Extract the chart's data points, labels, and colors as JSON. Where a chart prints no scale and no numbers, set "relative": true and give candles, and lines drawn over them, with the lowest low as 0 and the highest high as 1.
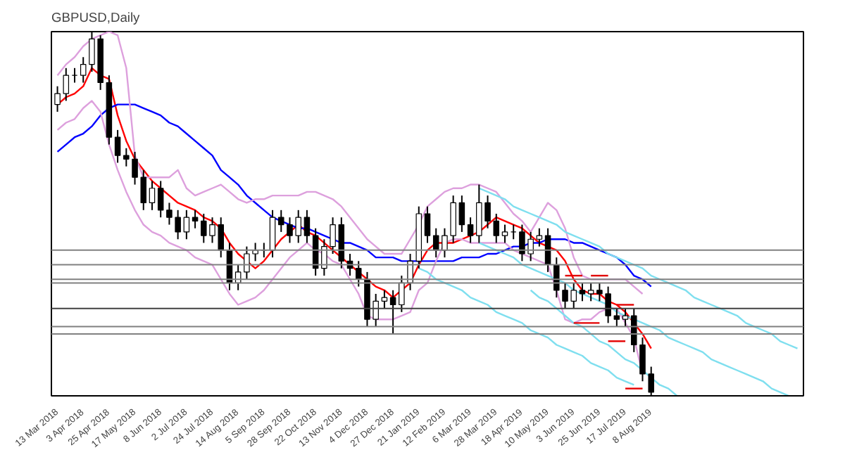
{
  "chart_data": {
    "type": "candlestick",
    "title": "GBPUSD,Daily",
    "relative": true,
    "grid": false,
    "categories": [
      "13 Mar 2018",
      null,
      null,
      "3 Apr 2018",
      null,
      null,
      "25 Apr 2018",
      null,
      null,
      "17 May 2018",
      null,
      null,
      "8 Jun 2018",
      null,
      null,
      "2 Jul 2018",
      null,
      null,
      "24 Jul 2018",
      null,
      null,
      "14 Aug 2018",
      null,
      null,
      "5 Sep 2018",
      null,
      null,
      "28 Sep 2018",
      null,
      null,
      "22 Oct 2018",
      null,
      null,
      "13 Nov 2018",
      null,
      null,
      "4 Dec 2018",
      null,
      null,
      "27 Dec 2018",
      null,
      null,
      "21 Jan 2019",
      null,
      null,
      "12 Feb 2019",
      null,
      null,
      "6 Mar 2019",
      null,
      null,
      "28 Mar 2019",
      null,
      null,
      "18 Apr 2019",
      null,
      null,
      "10 May 2019",
      null,
      null,
      "3 Jun 2019",
      null,
      null,
      "25 Jun 2019",
      null,
      null,
      "17 Jul 2019",
      null,
      null,
      "8 Aug 2019",
      null,
      null,
      null,
      null,
      null,
      null,
      null,
      null,
      null,
      null,
      null,
      null,
      null,
      null,
      null,
      null,
      null
    ],
    "ohlc": [
      [
        0.8,
        0.85,
        0.78,
        0.83
      ],
      [
        0.83,
        0.9,
        0.81,
        0.88
      ],
      [
        0.88,
        0.9,
        0.86,
        0.88
      ],
      [
        0.88,
        0.93,
        0.86,
        0.91
      ],
      [
        0.91,
        1.0,
        0.89,
        0.98
      ],
      [
        0.98,
        0.99,
        0.84,
        0.86
      ],
      [
        0.86,
        0.88,
        0.69,
        0.71
      ],
      [
        0.71,
        0.73,
        0.64,
        0.66
      ],
      [
        0.66,
        0.68,
        0.63,
        0.65
      ],
      [
        0.65,
        0.67,
        0.58,
        0.6
      ],
      [
        0.6,
        0.62,
        0.51,
        0.53
      ],
      [
        0.53,
        0.59,
        0.51,
        0.57
      ],
      [
        0.57,
        0.59,
        0.49,
        0.51
      ],
      [
        0.51,
        0.53,
        0.47,
        0.49
      ],
      [
        0.49,
        0.51,
        0.43,
        0.45
      ],
      [
        0.45,
        0.51,
        0.43,
        0.49
      ],
      [
        0.49,
        0.51,
        0.46,
        0.48
      ],
      [
        0.48,
        0.5,
        0.42,
        0.44
      ],
      [
        0.44,
        0.49,
        0.42,
        0.47
      ],
      [
        0.47,
        0.49,
        0.38,
        0.4
      ],
      [
        0.4,
        0.42,
        0.29,
        0.31
      ],
      [
        0.31,
        0.36,
        0.29,
        0.34
      ],
      [
        0.34,
        0.41,
        0.32,
        0.39
      ],
      [
        0.39,
        0.42,
        0.37,
        0.4
      ],
      [
        0.4,
        0.42,
        0.38,
        0.4
      ],
      [
        0.4,
        0.51,
        0.38,
        0.49
      ],
      [
        0.49,
        0.51,
        0.45,
        0.47
      ],
      [
        0.47,
        0.49,
        0.42,
        0.44
      ],
      [
        0.44,
        0.51,
        0.42,
        0.49
      ],
      [
        0.49,
        0.51,
        0.42,
        0.44
      ],
      [
        0.44,
        0.46,
        0.33,
        0.35
      ],
      [
        0.35,
        0.43,
        0.33,
        0.41
      ],
      [
        0.41,
        0.49,
        0.39,
        0.47
      ],
      [
        0.47,
        0.49,
        0.35,
        0.37
      ],
      [
        0.37,
        0.39,
        0.33,
        0.35
      ],
      [
        0.35,
        0.37,
        0.3,
        0.32
      ],
      [
        0.32,
        0.34,
        0.19,
        0.21
      ],
      [
        0.21,
        0.28,
        0.19,
        0.26
      ],
      [
        0.26,
        0.29,
        0.24,
        0.27
      ],
      [
        0.27,
        0.29,
        0.17,
        0.25
      ],
      [
        0.25,
        0.33,
        0.23,
        0.31
      ],
      [
        0.31,
        0.39,
        0.29,
        0.37
      ],
      [
        0.37,
        0.52,
        0.35,
        0.5
      ],
      [
        0.5,
        0.52,
        0.42,
        0.44
      ],
      [
        0.44,
        0.46,
        0.38,
        0.4
      ],
      [
        0.4,
        0.46,
        0.38,
        0.44
      ],
      [
        0.44,
        0.55,
        0.42,
        0.53
      ],
      [
        0.53,
        0.55,
        0.45,
        0.47
      ],
      [
        0.47,
        0.49,
        0.42,
        0.44
      ],
      [
        0.44,
        0.58,
        0.42,
        0.53
      ],
      [
        0.53,
        0.55,
        0.46,
        0.48
      ],
      [
        0.48,
        0.5,
        0.42,
        0.44
      ],
      [
        0.44,
        0.47,
        0.42,
        0.45
      ],
      [
        0.45,
        0.47,
        0.43,
        0.45
      ],
      [
        0.45,
        0.47,
        0.37,
        0.39
      ],
      [
        0.39,
        0.45,
        0.37,
        0.43
      ],
      [
        0.43,
        0.46,
        0.41,
        0.44
      ],
      [
        0.44,
        0.46,
        0.34,
        0.36
      ],
      [
        0.36,
        0.38,
        0.27,
        0.29
      ],
      [
        0.29,
        0.31,
        0.24,
        0.26
      ],
      [
        0.26,
        0.31,
        0.24,
        0.29
      ],
      [
        0.29,
        0.31,
        0.26,
        0.28
      ],
      [
        0.28,
        0.31,
        0.26,
        0.29
      ],
      [
        0.29,
        0.31,
        0.26,
        0.28
      ],
      [
        0.28,
        0.3,
        0.2,
        0.22
      ],
      [
        0.22,
        0.24,
        0.19,
        0.21
      ],
      [
        0.21,
        0.24,
        0.19,
        0.22
      ],
      [
        0.22,
        0.24,
        0.12,
        0.14
      ],
      [
        0.14,
        0.16,
        0.04,
        0.06
      ],
      [
        0.06,
        0.08,
        0.0,
        0.01
      ],
      null,
      null,
      null,
      null,
      null,
      null,
      null,
      null,
      null,
      null,
      null,
      null,
      null,
      null,
      null,
      null,
      null
    ],
    "series": [
      {
        "type": "line",
        "color": "#ff0000",
        "values": [
          0.8,
          0.82,
          0.83,
          0.85,
          0.9,
          0.88,
          0.87,
          0.77,
          0.7,
          0.65,
          0.62,
          0.59,
          0.57,
          0.55,
          0.53,
          0.52,
          0.51,
          0.49,
          0.48,
          0.46,
          0.42,
          0.39,
          0.37,
          0.35,
          0.37,
          0.4,
          0.43,
          0.45,
          0.47,
          0.45,
          0.44,
          0.42,
          0.4,
          0.38,
          0.36,
          0.34,
          0.32,
          0.3,
          0.29,
          0.27,
          0.29,
          0.31,
          0.36,
          0.4,
          0.42,
          0.42,
          0.42,
          0.43,
          0.44,
          0.45,
          0.47,
          0.49,
          0.48,
          0.47,
          0.46,
          0.44,
          0.42,
          0.41,
          0.4,
          0.37,
          0.32,
          0.29,
          0.28,
          0.28,
          0.26,
          0.25,
          0.23,
          0.2,
          0.17,
          0.13,
          null,
          null,
          null,
          null,
          null,
          null,
          null,
          null,
          null,
          null,
          null,
          null,
          null,
          null,
          null,
          null,
          null
        ]
      },
      {
        "type": "line",
        "color": "#0000ff",
        "values": [
          0.67,
          0.69,
          0.71,
          0.72,
          0.74,
          0.77,
          0.79,
          0.8,
          0.8,
          0.8,
          0.79,
          0.78,
          0.77,
          0.75,
          0.74,
          0.72,
          0.7,
          0.68,
          0.66,
          0.62,
          0.6,
          0.58,
          0.55,
          0.53,
          0.51,
          0.49,
          0.48,
          0.47,
          0.46,
          0.46,
          0.45,
          0.44,
          0.43,
          0.42,
          0.42,
          0.41,
          0.4,
          0.38,
          0.38,
          0.38,
          0.37,
          0.37,
          0.37,
          0.37,
          0.37,
          0.37,
          0.37,
          0.38,
          0.38,
          0.38,
          0.39,
          0.39,
          0.4,
          0.41,
          0.41,
          0.42,
          0.42,
          0.43,
          0.43,
          0.43,
          0.42,
          0.42,
          0.41,
          0.4,
          0.39,
          0.38,
          0.36,
          0.33,
          0.32,
          0.3,
          null,
          null,
          null,
          null,
          null,
          null,
          null,
          null,
          null,
          null,
          null,
          null,
          null,
          null,
          null,
          null,
          null
        ]
      },
      {
        "type": "line",
        "color": "#dda0dd",
        "values": [
          0.88,
          0.91,
          0.93,
          0.96,
          0.98,
          0.99,
          1.0,
          0.99,
          0.9,
          0.66,
          0.6,
          0.6,
          0.6,
          0.6,
          0.62,
          0.57,
          0.55,
          0.56,
          0.57,
          0.58,
          0.56,
          0.54,
          0.53,
          0.54,
          0.54,
          0.55,
          0.55,
          0.55,
          0.55,
          0.56,
          0.56,
          0.55,
          0.54,
          0.52,
          0.49,
          0.46,
          0.43,
          0.41,
          0.39,
          0.39,
          0.39,
          0.43,
          0.47,
          0.52,
          0.54,
          0.56,
          0.57,
          0.57,
          0.58,
          0.58,
          0.57,
          0.56,
          0.53,
          0.5,
          0.48,
          0.45,
          0.49,
          0.53,
          0.51,
          0.46,
          0.38,
          0.33,
          0.32,
          0.32,
          0.32,
          0.32,
          0.32,
          0.3,
          0.28,
          null,
          null,
          null,
          null,
          null,
          null,
          null,
          null,
          null,
          null,
          null,
          null,
          null,
          null,
          null,
          null,
          null,
          null
        ]
      },
      {
        "type": "line",
        "color": "#dda0dd",
        "values": [
          0.73,
          0.75,
          0.76,
          0.79,
          0.81,
          0.78,
          0.69,
          0.62,
          0.56,
          0.51,
          0.47,
          0.45,
          0.44,
          0.42,
          0.41,
          0.4,
          0.38,
          0.37,
          0.36,
          0.32,
          0.28,
          0.25,
          0.26,
          0.27,
          0.29,
          0.32,
          0.35,
          0.38,
          0.4,
          0.42,
          0.4,
          0.39,
          0.37,
          0.36,
          0.32,
          0.28,
          0.22,
          0.21,
          0.21,
          0.21,
          0.22,
          0.23,
          0.29,
          0.31,
          0.37,
          0.42,
          0.43,
          0.43,
          0.42,
          0.42,
          0.42,
          0.42,
          0.42,
          0.4,
          0.39,
          0.38,
          0.37,
          0.36,
          0.29,
          0.21,
          0.2,
          0.21,
          0.21,
          0.23,
          0.24,
          0.24,
          0.2,
          0.16,
          0.06,
          null,
          null,
          null,
          null,
          null,
          null,
          null,
          null,
          null,
          null,
          null,
          null,
          null,
          null,
          null,
          null,
          null,
          null
        ]
      },
      {
        "type": "line",
        "color": "#7fdfef",
        "values": [
          null,
          null,
          null,
          null,
          null,
          null,
          null,
          null,
          null,
          null,
          null,
          null,
          null,
          null,
          null,
          null,
          null,
          null,
          null,
          null,
          null,
          null,
          null,
          null,
          null,
          null,
          null,
          null,
          null,
          null,
          null,
          null,
          null,
          null,
          null,
          null,
          null,
          null,
          null,
          null,
          null,
          null,
          null,
          null,
          null,
          null,
          null,
          null,
          null,
          0.57,
          0.56,
          0.55,
          0.54,
          0.52,
          0.51,
          0.5,
          0.49,
          0.48,
          0.47,
          0.45,
          0.44,
          0.43,
          0.42,
          0.41,
          0.39,
          0.38,
          0.37,
          0.36,
          0.35,
          0.33,
          0.32,
          0.31,
          0.3,
          0.29,
          0.27,
          0.26,
          0.25,
          0.24,
          0.23,
          0.22,
          0.2,
          0.19,
          0.18,
          0.17,
          0.15,
          0.14,
          0.13
        ]
      },
      {
        "type": "line",
        "color": "#7fdfef",
        "values": [
          null,
          null,
          null,
          null,
          null,
          null,
          null,
          null,
          null,
          null,
          null,
          null,
          null,
          null,
          null,
          null,
          null,
          null,
          null,
          null,
          null,
          null,
          null,
          null,
          null,
          null,
          null,
          null,
          null,
          null,
          null,
          null,
          null,
          null,
          null,
          null,
          null,
          null,
          null,
          null,
          null,
          null,
          null,
          null,
          null,
          null,
          null,
          null,
          null,
          0.42,
          0.41,
          0.4,
          0.39,
          0.38,
          0.36,
          0.35,
          0.34,
          0.33,
          0.32,
          0.31,
          0.29,
          0.28,
          0.27,
          0.26,
          0.25,
          0.23,
          0.22,
          0.21,
          0.2,
          0.19,
          0.18,
          0.16,
          0.15,
          0.14,
          0.13,
          0.12,
          0.1,
          0.09,
          0.08,
          0.07,
          0.06,
          0.05,
          0.04,
          0.02,
          0.01,
          0.0,
          null
        ]
      },
      {
        "type": "line",
        "color": "#7fdfef",
        "values": [
          null,
          null,
          null,
          null,
          null,
          null,
          null,
          null,
          null,
          null,
          null,
          null,
          null,
          null,
          null,
          null,
          null,
          null,
          null,
          null,
          null,
          null,
          null,
          null,
          null,
          null,
          null,
          null,
          null,
          null,
          null,
          null,
          null,
          null,
          null,
          null,
          null,
          null,
          null,
          null,
          null,
          null,
          null,
          null,
          null,
          null,
          null,
          null,
          null,
          null,
          null,
          null,
          null,
          null,
          null,
          0.29,
          0.27,
          0.26,
          0.24,
          0.22,
          0.2,
          0.19,
          0.17,
          0.15,
          0.14,
          0.12,
          0.1,
          0.09,
          0.07,
          0.05,
          0.03,
          0.02,
          0.0,
          null,
          null,
          null,
          null,
          null,
          null,
          null,
          null,
          null,
          null,
          null,
          null,
          null,
          null
        ]
      },
      {
        "type": "line",
        "color": "#7fdfef",
        "values": [
          null,
          null,
          null,
          null,
          null,
          null,
          null,
          null,
          null,
          null,
          null,
          null,
          null,
          null,
          null,
          null,
          null,
          null,
          null,
          null,
          null,
          null,
          null,
          null,
          null,
          null,
          null,
          null,
          null,
          null,
          null,
          null,
          null,
          null,
          null,
          null,
          null,
          null,
          null,
          null,
          null,
          null,
          0.35,
          0.34,
          0.32,
          0.31,
          0.3,
          0.29,
          0.27,
          0.26,
          0.25,
          0.23,
          0.22,
          0.21,
          0.2,
          0.18,
          0.17,
          0.16,
          0.14,
          0.13,
          0.12,
          0.11,
          0.09,
          0.08,
          0.07,
          0.05,
          0.04,
          0.03,
          null,
          null,
          null,
          null,
          null,
          null,
          null,
          null,
          null,
          null,
          null,
          null,
          null,
          null,
          null,
          null,
          null,
          null,
          null
        ]
      },
      {
        "type": "line",
        "color": "#e00000",
        "values": [
          null,
          null,
          null,
          null,
          null,
          null,
          null,
          null,
          null,
          null,
          null,
          null,
          null,
          null,
          null,
          null,
          null,
          null,
          null,
          null,
          null,
          null,
          null,
          null,
          null,
          null,
          null,
          null,
          null,
          null,
          null,
          null,
          null,
          null,
          null,
          null,
          null,
          null,
          null,
          null,
          null,
          null,
          null,
          null,
          null,
          null,
          null,
          null,
          null,
          null,
          null,
          null,
          null,
          null,
          null,
          null,
          null,
          null,
          null,
          0.33,
          0.33,
          0.33,
          null,
          null,
          null,
          null,
          null,
          null,
          null,
          null,
          null,
          null,
          null,
          null,
          null,
          null,
          null,
          null,
          null,
          null,
          null,
          null,
          null,
          null,
          null,
          null,
          null
        ]
      },
      {
        "type": "line",
        "color": "#e10000",
        "values": [
          null,
          null,
          null,
          null,
          null,
          null,
          null,
          null,
          null,
          null,
          null,
          null,
          null,
          null,
          null,
          null,
          null,
          null,
          null,
          null,
          null,
          null,
          null,
          null,
          null,
          null,
          null,
          null,
          null,
          null,
          null,
          null,
          null,
          null,
          null,
          null,
          null,
          null,
          null,
          null,
          null,
          null,
          null,
          null,
          null,
          null,
          null,
          null,
          null,
          null,
          null,
          null,
          null,
          null,
          null,
          null,
          null,
          null,
          null,
          null,
          null,
          null,
          0.33,
          0.33,
          0.33,
          null,
          null,
          null,
          null,
          null,
          null,
          null,
          null,
          null,
          null,
          null,
          null,
          null,
          null,
          null,
          null,
          null,
          null,
          null,
          null,
          null,
          null
        ]
      },
      {
        "type": "line",
        "color": "#e20000",
        "values": [
          null,
          null,
          null,
          null,
          null,
          null,
          null,
          null,
          null,
          null,
          null,
          null,
          null,
          null,
          null,
          null,
          null,
          null,
          null,
          null,
          null,
          null,
          null,
          null,
          null,
          null,
          null,
          null,
          null,
          null,
          null,
          null,
          null,
          null,
          null,
          null,
          null,
          null,
          null,
          null,
          null,
          null,
          null,
          null,
          null,
          null,
          null,
          null,
          null,
          null,
          null,
          null,
          null,
          null,
          null,
          null,
          null,
          null,
          null,
          null,
          null,
          null,
          null,
          null,
          null,
          0.25,
          0.25,
          0.25,
          null,
          null,
          null,
          null,
          null,
          null,
          null,
          null,
          null,
          null,
          null,
          null,
          null,
          null,
          null,
          null,
          null,
          null,
          null
        ]
      },
      {
        "type": "line",
        "color": "#e30000",
        "values": [
          null,
          null,
          null,
          null,
          null,
          null,
          null,
          null,
          null,
          null,
          null,
          null,
          null,
          null,
          null,
          null,
          null,
          null,
          null,
          null,
          null,
          null,
          null,
          null,
          null,
          null,
          null,
          null,
          null,
          null,
          null,
          null,
          null,
          null,
          null,
          null,
          null,
          null,
          null,
          null,
          null,
          null,
          null,
          null,
          null,
          null,
          null,
          null,
          null,
          null,
          null,
          null,
          null,
          null,
          null,
          null,
          null,
          null,
          null,
          null,
          0.2,
          0.2,
          0.2,
          0.2,
          null,
          null,
          null,
          null,
          null,
          null,
          null,
          null,
          null,
          null,
          null,
          null,
          null,
          null,
          null,
          null,
          null,
          null,
          null,
          null,
          null,
          null,
          null
        ]
      },
      {
        "type": "line",
        "color": "#e40000",
        "values": [
          null,
          null,
          null,
          null,
          null,
          null,
          null,
          null,
          null,
          null,
          null,
          null,
          null,
          null,
          null,
          null,
          null,
          null,
          null,
          null,
          null,
          null,
          null,
          null,
          null,
          null,
          null,
          null,
          null,
          null,
          null,
          null,
          null,
          null,
          null,
          null,
          null,
          null,
          null,
          null,
          null,
          null,
          null,
          null,
          null,
          null,
          null,
          null,
          null,
          null,
          null,
          null,
          null,
          null,
          null,
          null,
          null,
          null,
          null,
          null,
          null,
          null,
          null,
          null,
          0.15,
          0.15,
          0.15,
          null,
          null,
          null,
          null,
          null,
          null,
          null,
          null,
          null,
          null,
          null,
          null,
          null,
          null,
          null,
          null,
          null,
          null,
          null,
          null
        ]
      },
      {
        "type": "line",
        "color": "#e50000",
        "values": [
          null,
          null,
          null,
          null,
          null,
          null,
          null,
          null,
          null,
          null,
          null,
          null,
          null,
          null,
          null,
          null,
          null,
          null,
          null,
          null,
          null,
          null,
          null,
          null,
          null,
          null,
          null,
          null,
          null,
          null,
          null,
          null,
          null,
          null,
          null,
          null,
          null,
          null,
          null,
          null,
          null,
          null,
          null,
          null,
          null,
          null,
          null,
          null,
          null,
          null,
          null,
          null,
          null,
          null,
          null,
          null,
          null,
          null,
          null,
          null,
          null,
          null,
          null,
          null,
          null,
          null,
          0.02,
          0.02,
          0.02,
          null,
          null,
          null,
          null,
          null,
          null,
          null,
          null,
          null,
          null,
          null,
          null,
          null,
          null,
          null,
          null,
          null,
          null
        ]
      }
    ],
    "ref_lines": [
      {
        "axis": "y",
        "value": 0.4,
        "color": "#808080"
      },
      {
        "axis": "y",
        "value": 0.36,
        "color": "#808080"
      },
      {
        "axis": "y",
        "value": 0.32,
        "color": "#808080"
      },
      {
        "axis": "y",
        "value": 0.31,
        "color": "#808080"
      },
      {
        "axis": "y",
        "value": 0.24,
        "color": "#404040"
      },
      {
        "axis": "y",
        "value": 0.19,
        "color": "#808080"
      },
      {
        "axis": "y",
        "value": 0.17,
        "color": "#808080"
      }
    ]
  }
}
